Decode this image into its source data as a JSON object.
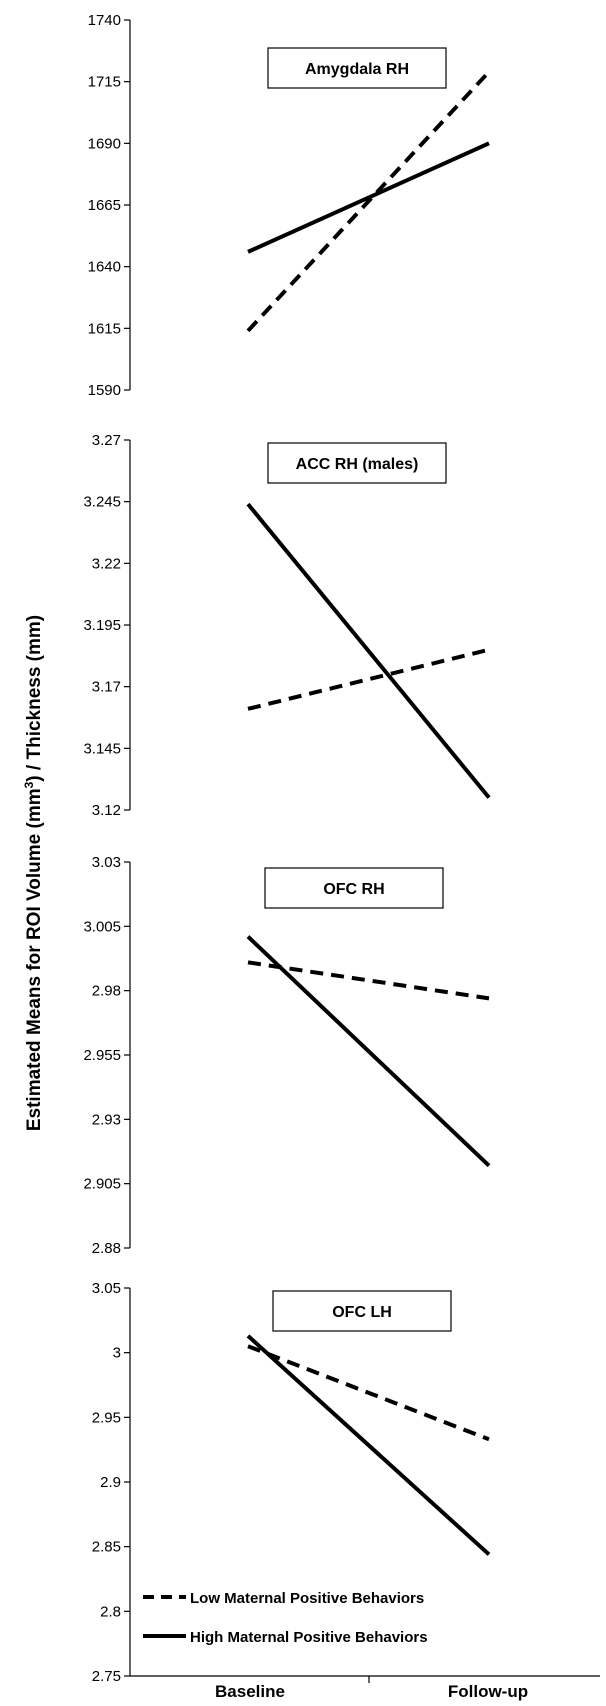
{
  "chart_data": {
    "type": "line",
    "categories": [
      "Baseline",
      "Follow-up"
    ],
    "ylabel_pre": "Estimated Means for ROI Volume (mm",
    "ylabel_sup": "3",
    "ylabel_post": ") / Thickness (mm)",
    "legend": {
      "placement": "bottom-left",
      "entries": [
        {
          "series": "low",
          "label": "Low Maternal Positive Behaviors",
          "style": "dashed"
        },
        {
          "series": "high",
          "label": "High Maternal Positive Behaviors",
          "style": "solid"
        }
      ]
    },
    "panels": [
      {
        "title": "Amygdala RH",
        "ylim": [
          1590,
          1740
        ],
        "ticks": [
          "1590",
          "1615",
          "1640",
          "1665",
          "1690",
          "1715",
          "1740"
        ],
        "series": [
          {
            "key": "low",
            "style": "dashed",
            "values": [
              1614,
              1719
            ]
          },
          {
            "key": "high",
            "style": "solid",
            "values": [
              1646,
              1690
            ]
          }
        ]
      },
      {
        "title": "ACC RH (males)",
        "ylim": [
          3.12,
          3.27
        ],
        "ticks": [
          "3.12",
          "3.145",
          "3.17",
          "3.195",
          "3.22",
          "3.245",
          "3.27"
        ],
        "series": [
          {
            "key": "low",
            "style": "dashed",
            "values": [
              3.161,
              3.185
            ]
          },
          {
            "key": "high",
            "style": "solid",
            "values": [
              3.244,
              3.125
            ]
          }
        ]
      },
      {
        "title": "OFC RH",
        "ylim": [
          2.88,
          3.03
        ],
        "ticks": [
          "2.88",
          "2.905",
          "2.93",
          "2.955",
          "2.98",
          "3.005",
          "3.03"
        ],
        "series": [
          {
            "key": "low",
            "style": "dashed",
            "values": [
              2.991,
              2.977
            ]
          },
          {
            "key": "high",
            "style": "solid",
            "values": [
              3.001,
              2.912
            ]
          }
        ]
      },
      {
        "title": "OFC LH",
        "ylim": [
          2.75,
          3.05
        ],
        "ticks": [
          "2.75",
          "2.8",
          "2.85",
          "2.9",
          "2.95",
          "3",
          "3.05"
        ],
        "series": [
          {
            "key": "low",
            "style": "dashed",
            "values": [
              3.005,
              2.933
            ]
          },
          {
            "key": "high",
            "style": "solid",
            "values": [
              3.013,
              2.844
            ]
          }
        ]
      }
    ]
  }
}
